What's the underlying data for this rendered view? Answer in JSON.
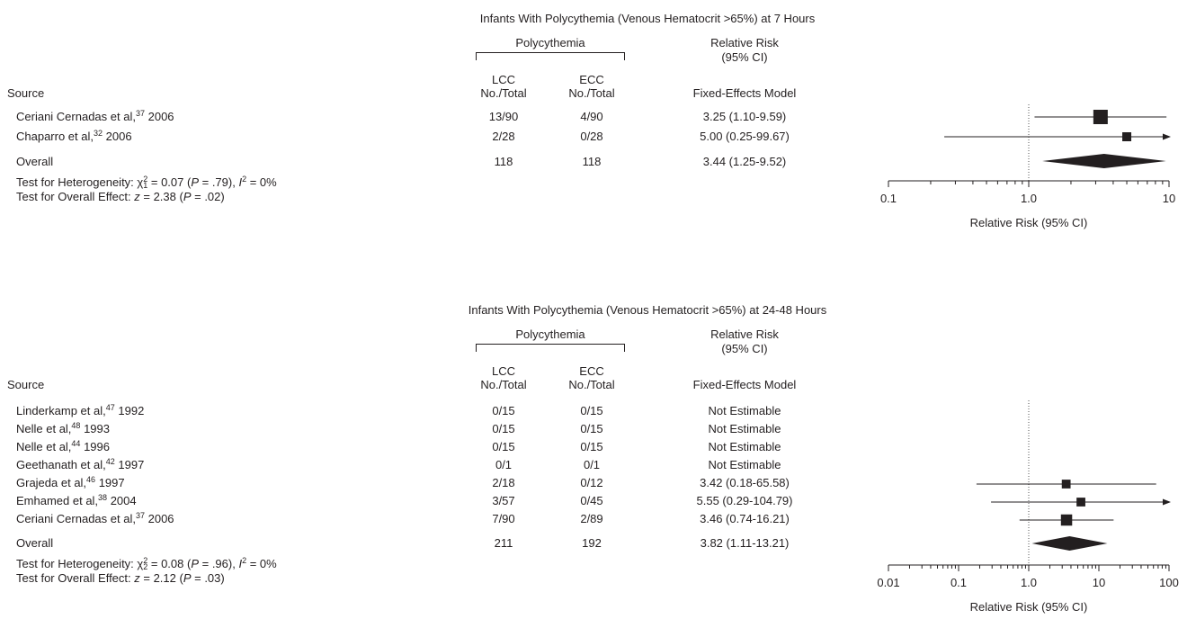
{
  "chart_data": [
    {
      "type": "forest",
      "title": "Infants With Polycythemia (Venous Hematocrit >65%) at 7 Hours",
      "group_header": "Polycythemia",
      "col_lcc": "LCC",
      "col_ecc": "ECC",
      "col_sub": "No./Total",
      "rr_header_1": "Relative Risk",
      "rr_header_2": "(95% CI)",
      "model": "Fixed-Effects Model",
      "source_header": "Source",
      "studies": [
        {
          "name": "Ceriani Cernadas et al,",
          "ref": "37",
          "year": "2006",
          "lcc": "13/90",
          "ecc": "4/90",
          "rr_text": "3.25 (1.10-9.59)",
          "rr": 3.25,
          "lo": 1.1,
          "hi": 9.59,
          "weight": 0.8
        },
        {
          "name": "Chaparro et al,",
          "ref": "32",
          "year": "2006",
          "lcc": "2/28",
          "ecc": "0/28",
          "rr_text": "5.00 (0.25-99.67)",
          "rr": 5.0,
          "lo": 0.25,
          "hi": 99.67,
          "weight": 0.2
        }
      ],
      "overall": {
        "label": "Overall",
        "lcc": "118",
        "ecc": "118",
        "rr_text": "3.44 (1.25-9.52)",
        "rr": 3.44,
        "lo": 1.25,
        "hi": 9.52
      },
      "het_text": {
        "prefix": "Test for Heterogeneity: ",
        "chi": "χ",
        "sup": "2",
        "sub": "1",
        "mid": " = 0.07 (",
        "p": "P",
        "pval": " = .79), ",
        "i": "I",
        "isup": "2",
        "ival": " = 0%"
      },
      "effect_text": {
        "prefix": "Test for Overall Effect: ",
        "z": "z",
        "zval": " = 2.38 (",
        "p": "P",
        "pval": " = .02)"
      },
      "xlabel": "Relative Risk (95% CI)",
      "xscale": "log",
      "xlim": [
        0.1,
        10
      ],
      "ticks": [
        {
          "v": 0.1,
          "label": "0.1"
        },
        {
          "v": 1,
          "label": "1.0"
        },
        {
          "v": 10,
          "label": "10"
        }
      ],
      "null_line": 1
    },
    {
      "type": "forest",
      "title": "Infants With Polycythemia (Venous Hematocrit >65%) at 24-48 Hours",
      "group_header": "Polycythemia",
      "col_lcc": "LCC",
      "col_ecc": "ECC",
      "col_sub": "No./Total",
      "rr_header_1": "Relative Risk",
      "rr_header_2": "(95% CI)",
      "model": "Fixed-Effects Model",
      "source_header": "Source",
      "studies": [
        {
          "name": "Linderkamp et al,",
          "ref": "47",
          "year": "1992",
          "lcc": "0/15",
          "ecc": "0/15",
          "rr_text": "Not Estimable",
          "rr": null,
          "lo": null,
          "hi": null,
          "weight": 0
        },
        {
          "name": "Nelle et al,",
          "ref": "48",
          "year": "1993",
          "lcc": "0/15",
          "ecc": "0/15",
          "rr_text": "Not Estimable",
          "rr": null,
          "lo": null,
          "hi": null,
          "weight": 0
        },
        {
          "name": "Nelle et al,",
          "ref": "44",
          "year": "1996",
          "lcc": "0/15",
          "ecc": "0/15",
          "rr_text": "Not Estimable",
          "rr": null,
          "lo": null,
          "hi": null,
          "weight": 0
        },
        {
          "name": "Geethanath et al,",
          "ref": "42",
          "year": "1997",
          "lcc": "0/1",
          "ecc": "0/1",
          "rr_text": "Not Estimable",
          "rr": null,
          "lo": null,
          "hi": null,
          "weight": 0
        },
        {
          "name": "Grajeda et al,",
          "ref": "46",
          "year": "1997",
          "lcc": "2/18",
          "ecc": "0/12",
          "rr_text": "3.42 (0.18-65.58)",
          "rr": 3.42,
          "lo": 0.18,
          "hi": 65.58,
          "weight": 0.22
        },
        {
          "name": "Emhamed et al,",
          "ref": "38",
          "year": "2004",
          "lcc": "3/57",
          "ecc": "0/45",
          "rr_text": "5.55 (0.29-104.79)",
          "rr": 5.55,
          "lo": 0.29,
          "hi": 104.79,
          "weight": 0.22
        },
        {
          "name": "Ceriani Cernadas et al,",
          "ref": "37",
          "year": "2006",
          "lcc": "7/90",
          "ecc": "2/89",
          "rr_text": "3.46 (0.74-16.21)",
          "rr": 3.46,
          "lo": 0.74,
          "hi": 16.21,
          "weight": 0.56
        }
      ],
      "overall": {
        "label": "Overall",
        "lcc": "211",
        "ecc": "192",
        "rr_text": "3.82 (1.11-13.21)",
        "rr": 3.82,
        "lo": 1.11,
        "hi": 13.21
      },
      "het_text": {
        "prefix": "Test for Heterogeneity: ",
        "chi": "χ",
        "sup": "2",
        "sub": "2",
        "mid": " = 0.08 (",
        "p": "P",
        "pval": " = .96), ",
        "i": "I",
        "isup": "2",
        "ival": " = 0%"
      },
      "effect_text": {
        "prefix": "Test for Overall Effect: ",
        "z": "z",
        "zval": " = 2.12 (",
        "p": "P",
        "pval": " = .03)"
      },
      "xlabel": "Relative Risk (95% CI)",
      "xscale": "log",
      "xlim": [
        0.01,
        100
      ],
      "ticks": [
        {
          "v": 0.01,
          "label": "0.01"
        },
        {
          "v": 0.1,
          "label": "0.1"
        },
        {
          "v": 1,
          "label": "1.0"
        },
        {
          "v": 10,
          "label": "10"
        },
        {
          "v": 100,
          "label": "100"
        }
      ],
      "null_line": 1
    }
  ]
}
